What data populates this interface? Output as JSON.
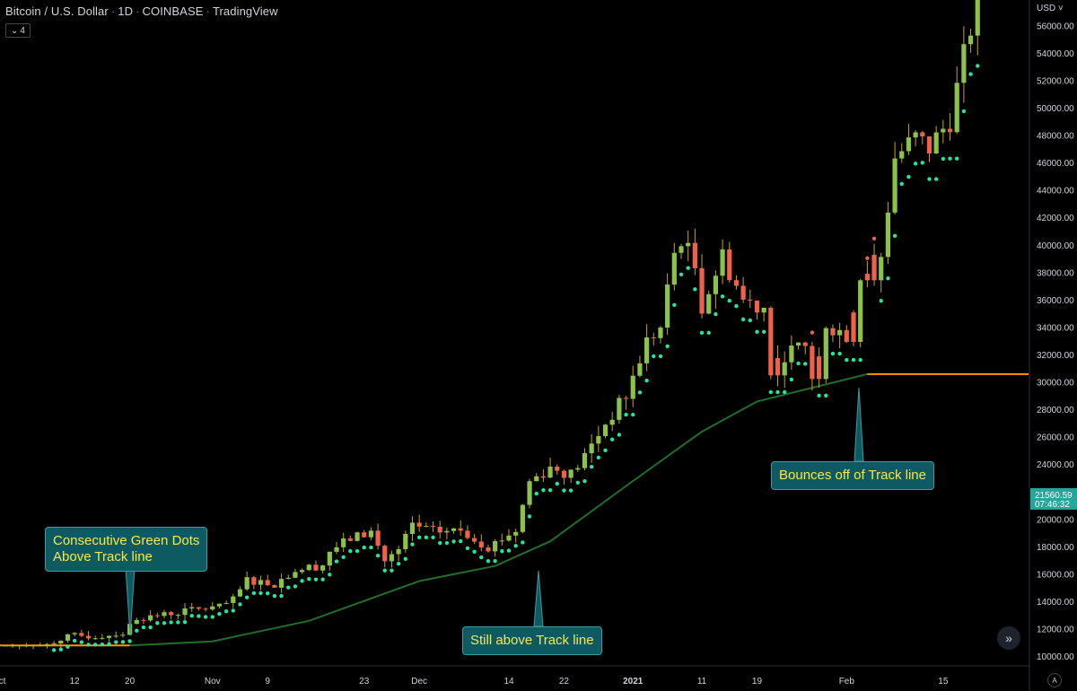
{
  "header": {
    "symbol": "Bitcoin / U.S. Dollar",
    "interval": "1D",
    "exchange": "COINBASE",
    "source": "TradingView",
    "indicator_count": "4",
    "currency": "USD"
  },
  "price_labels": {
    "last_price": "21560.59",
    "countdown": "07:46:32"
  },
  "callouts": {
    "consecutive": [
      "Consecutive Green Dots",
      "Above Track line"
    ],
    "still_above": "Still above Track line",
    "bounces": "Bounces off of Track line"
  },
  "buttons": {
    "scroll_to_realtime": "»",
    "auto_scale": "A"
  },
  "colors": {
    "background": "#000000",
    "up_candle": "#8bc34a",
    "down_candle": "#f0614a",
    "dot_green": "#22e6a0",
    "dot_red": "#f0614a",
    "track_line": "#1f6f2a",
    "flat_line": "#ff9800",
    "callout_bg": "#0e5a63",
    "callout_text": "#f5e94a",
    "last_price_bg": "#26a69a"
  },
  "chart_data": {
    "type": "candlestick",
    "title": "Bitcoin / U.S. Dollar · 1D · COINBASE",
    "ylim": [
      9000,
      58000
    ],
    "y_ticks": [
      10000,
      12000,
      14000,
      16000,
      18000,
      20000,
      22000,
      24000,
      26000,
      28000,
      30000,
      32000,
      34000,
      36000,
      38000,
      40000,
      42000,
      44000,
      46000,
      48000,
      50000,
      52000,
      54000,
      56000
    ],
    "x_tick_labels": [
      {
        "label": "Oct",
        "date": "2020-10-01"
      },
      {
        "label": "12",
        "date": "2020-10-12"
      },
      {
        "label": "20",
        "date": "2020-10-20"
      },
      {
        "label": "Nov",
        "date": "2020-11-01"
      },
      {
        "label": "9",
        "date": "2020-11-09"
      },
      {
        "label": "23",
        "date": "2020-11-23"
      },
      {
        "label": "Dec",
        "date": "2020-12-01"
      },
      {
        "label": "14",
        "date": "2020-12-14"
      },
      {
        "label": "22",
        "date": "2020-12-22"
      },
      {
        "label": "2021",
        "date": "2021-01-01"
      },
      {
        "label": "11",
        "date": "2021-01-11"
      },
      {
        "label": "19",
        "date": "2021-01-19"
      },
      {
        "label": "Feb",
        "date": "2021-02-01"
      },
      {
        "label": "15",
        "date": "2021-02-15"
      }
    ],
    "close_series": {
      "name": "Close",
      "points": [
        [
          "2020-10-08",
          10900
        ],
        [
          "2020-10-10",
          11300
        ],
        [
          "2020-10-12",
          11500
        ],
        [
          "2020-10-15",
          11450
        ],
        [
          "2020-10-19",
          11700
        ],
        [
          "2020-10-21",
          12800
        ],
        [
          "2020-10-25",
          13050
        ],
        [
          "2020-10-29",
          13400
        ],
        [
          "2020-11-02",
          13600
        ],
        [
          "2020-11-04",
          14100
        ],
        [
          "2020-11-06",
          15600
        ],
        [
          "2020-11-10",
          15300
        ],
        [
          "2020-11-13",
          16300
        ],
        [
          "2020-11-17",
          16700
        ],
        [
          "2020-11-18",
          17700
        ],
        [
          "2020-11-21",
          18600
        ],
        [
          "2020-11-24",
          19100
        ],
        [
          "2020-11-26",
          17000
        ],
        [
          "2020-11-28",
          17700
        ],
        [
          "2020-11-30",
          19600
        ],
        [
          "2020-12-03",
          19100
        ],
        [
          "2020-12-07",
          19200
        ],
        [
          "2020-12-11",
          18000
        ],
        [
          "2020-12-15",
          19200
        ],
        [
          "2020-12-17",
          22800
        ],
        [
          "2020-12-20",
          23800
        ],
        [
          "2020-12-23",
          23300
        ],
        [
          "2020-12-25",
          24600
        ],
        [
          "2020-12-28",
          27000
        ],
        [
          "2020-12-31",
          29000
        ],
        [
          "2021-01-03",
          33000
        ],
        [
          "2021-01-05",
          33900
        ],
        [
          "2021-01-07",
          39400
        ],
        [
          "2021-01-08",
          40600
        ],
        [
          "2021-01-10",
          38400
        ],
        [
          "2021-01-11",
          35600
        ],
        [
          "2021-01-14",
          39200
        ],
        [
          "2021-01-17",
          36000
        ],
        [
          "2021-01-20",
          35500
        ],
        [
          "2021-01-21",
          31000
        ],
        [
          "2021-01-23",
          32100
        ],
        [
          "2021-01-26",
          32500
        ],
        [
          "2021-01-27",
          30400
        ],
        [
          "2021-01-29",
          34300
        ],
        [
          "2021-02-01",
          33500
        ],
        [
          "2021-02-03",
          37700
        ],
        [
          "2021-02-06",
          39200
        ],
        [
          "2021-02-08",
          46400
        ],
        [
          "2021-02-11",
          47800
        ],
        [
          "2021-02-13",
          47100
        ],
        [
          "2021-02-16",
          49200
        ],
        [
          "2021-02-19",
          55900
        ],
        [
          "2021-02-20",
          57500
        ]
      ]
    },
    "track_line": {
      "name": "Track line",
      "points": [
        [
          "2020-10-20",
          10800
        ],
        [
          "2020-11-01",
          11100
        ],
        [
          "2020-11-15",
          12600
        ],
        [
          "2020-12-01",
          15500
        ],
        [
          "2020-12-12",
          16600
        ],
        [
          "2020-12-20",
          18400
        ],
        [
          "2021-01-01",
          22800
        ],
        [
          "2021-01-11",
          26400
        ],
        [
          "2021-01-19",
          28600
        ],
        [
          "2021-01-27",
          29600
        ],
        [
          "2021-02-04",
          30600
        ]
      ],
      "flat_level": 30600
    },
    "pre_track_level": 10800,
    "annotations": [
      {
        "text": "Consecutive Green Dots Above Track line",
        "date": "2020-10-12",
        "value": 11500
      },
      {
        "text": "Still above Track line",
        "date": "2020-12-13",
        "value": 16600
      },
      {
        "text": "Bounces off of Track line",
        "date": "2021-01-27",
        "value": 29600
      }
    ]
  }
}
